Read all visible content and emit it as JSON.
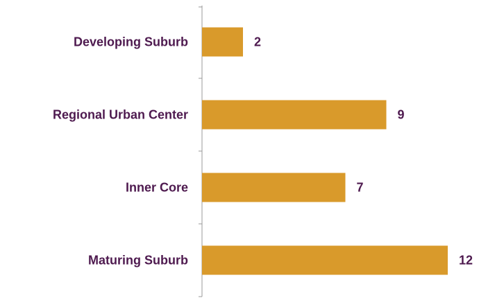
{
  "chart_data": {
    "type": "barh",
    "categories": [
      "Developing Suburb",
      "Regional Urban Center",
      "Inner Core",
      "Maturing Suburb"
    ],
    "values": [
      2,
      9,
      7,
      12
    ],
    "color": "#d99a2b"
  }
}
